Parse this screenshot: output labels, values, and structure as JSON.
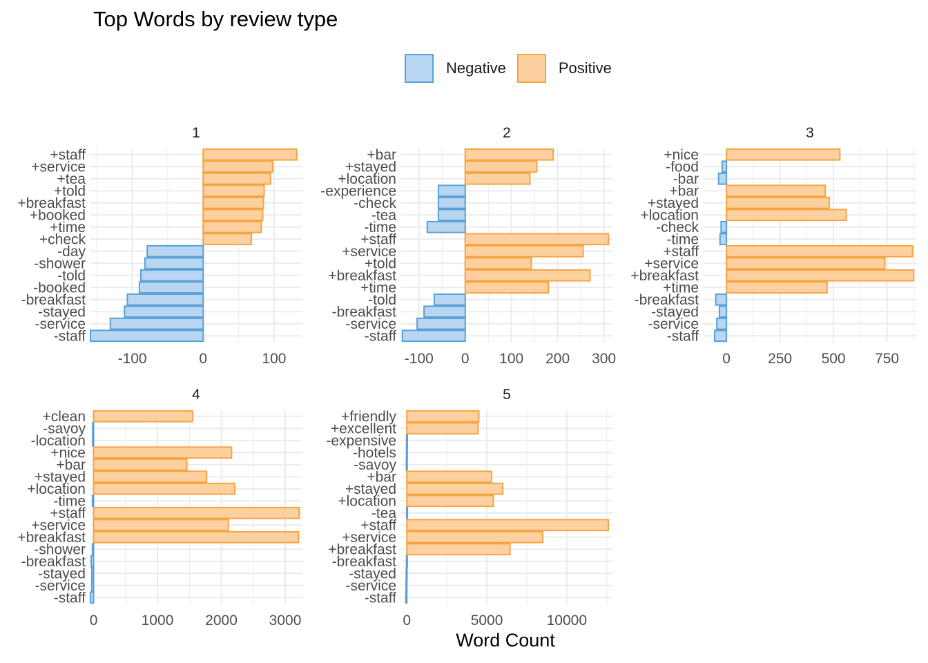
{
  "colors": {
    "negative_fill": "#b8d6f2",
    "negative_stroke": "#5aa0d6",
    "positive_fill": "#fdd0a0",
    "positive_stroke": "#f5a443",
    "grid": "#ebebeb",
    "text": "#4d4d4d"
  },
  "chart_data": {
    "type": "bar",
    "orientation": "horizontal",
    "title": "Top Words by review type",
    "xlabel": "Word Count",
    "ylabel": "",
    "legend": {
      "position": "top",
      "entries": [
        "Negative",
        "Positive"
      ]
    },
    "grid": true,
    "facets": [
      {
        "label": "1",
        "xlim": [
          -160,
          140
        ],
        "ticks": [
          -100,
          0,
          100
        ],
        "tick_labels": [
          "-100",
          "0",
          "100"
        ],
        "categories": [
          "+staff",
          "+service",
          "+tea",
          "+told",
          "+breakfast",
          "+booked",
          "+time",
          "+check",
          "-day",
          "-shower",
          "-told",
          "-booked",
          "-breakfast",
          "-stayed",
          "-service",
          "-staff"
        ],
        "values": [
          132,
          98,
          95,
          86,
          85,
          84,
          82,
          68,
          -79,
          -82,
          -88,
          -90,
          -107,
          -111,
          -131,
          -159
        ]
      },
      {
        "label": "2",
        "xlim": [
          -140,
          320
        ],
        "ticks": [
          -100,
          0,
          100,
          200,
          300
        ],
        "tick_labels": [
          "-100",
          "0",
          "100",
          "200",
          "300"
        ],
        "categories": [
          "+bar",
          "+stayed",
          "+location",
          "-experience",
          "-check",
          "-tea",
          "-time",
          "+staff",
          "+service",
          "+told",
          "+breakfast",
          "+time",
          "-told",
          "-breakfast",
          "-service",
          "-staff"
        ],
        "values": [
          190,
          155,
          140,
          -58,
          -58,
          -58,
          -82,
          310,
          255,
          143,
          270,
          180,
          -67,
          -89,
          -104,
          -136
        ]
      },
      {
        "label": "3",
        "xlim": [
          -110,
          890
        ],
        "ticks": [
          0,
          250,
          500,
          750
        ],
        "tick_labels": [
          "0",
          "250",
          "500",
          "750"
        ],
        "categories": [
          "+nice",
          "-food",
          "-bar",
          "+bar",
          "+stayed",
          "+location",
          "-check",
          "-time",
          "+staff",
          "+service",
          "+breakfast",
          "+time",
          "-breakfast",
          "-stayed",
          "-service",
          "-staff"
        ],
        "values": [
          530,
          -20,
          -37,
          462,
          480,
          560,
          -25,
          -30,
          870,
          740,
          875,
          470,
          -50,
          -33,
          -45,
          -55
        ]
      },
      {
        "label": "4",
        "xlim": [
          -60,
          3270
        ],
        "ticks": [
          0,
          1000,
          2000,
          3000
        ],
        "tick_labels": [
          "0",
          "1000",
          "2000",
          "3000"
        ],
        "categories": [
          "+clean",
          "-savoy",
          "-location",
          "+nice",
          "+bar",
          "+stayed",
          "+location",
          "-time",
          "+staff",
          "+service",
          "+breakfast",
          "-shower",
          "-breakfast",
          "-stayed",
          "-service",
          "-staff"
        ],
        "values": [
          1550,
          -15,
          -15,
          2160,
          1460,
          1770,
          2210,
          -18,
          3220,
          2110,
          3210,
          -18,
          -38,
          -28,
          -30,
          -50
        ]
      },
      {
        "label": "5",
        "xlim": [
          -400,
          12900
        ],
        "ticks": [
          0,
          5000,
          10000
        ],
        "tick_labels": [
          "0",
          "5000",
          "10000"
        ],
        "categories": [
          "+friendly",
          "+excellent",
          "-expensive",
          "-hotels",
          "-savoy",
          "+bar",
          "+stayed",
          "+location",
          "-tea",
          "+staff",
          "+service",
          "+breakfast",
          "-breakfast",
          "-stayed",
          "-service",
          "-staff"
        ],
        "values": [
          4500,
          4450,
          -20,
          -25,
          -30,
          5300,
          6000,
          5400,
          -15,
          12600,
          8500,
          6450,
          -25,
          -40,
          -50,
          -65
        ]
      }
    ]
  }
}
